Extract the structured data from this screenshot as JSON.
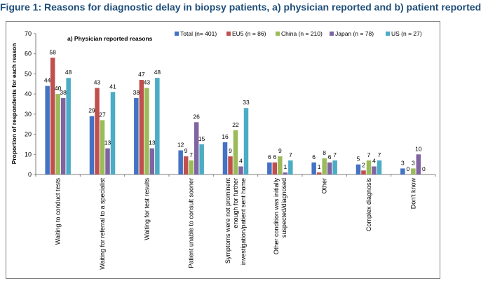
{
  "figure_title": "Figure 1: Reasons for diagnostic delay in biopsy patients, a) physician reported and b) patient reported",
  "chart_data": {
    "type": "bar",
    "subtitle": "a) Physician reported reasons",
    "ylabel": "Proportion of respondents for each reason",
    "xlabel": "",
    "ylim": [
      0,
      70
    ],
    "yticks": [
      0,
      10,
      20,
      30,
      40,
      50,
      60,
      70
    ],
    "grid": false,
    "legend_position": "top",
    "categories": [
      "Waiting to conduct tests",
      "Waiting for referral to a specialist",
      "Waiting for test results",
      "Patient unable to consult sooner",
      "Symptoms were not prominent enough for further investigation/patient sent home",
      "Other condition was initially suspected/diagnosed",
      "Other",
      "Complex diagnosis",
      "Don't know"
    ],
    "category_label_lines": [
      [
        "Waiting to conduct tests"
      ],
      [
        "Waiting for referral to a specialist"
      ],
      [
        "Waiting for test results"
      ],
      [
        "Patient unable to consult sooner"
      ],
      [
        "Symptoms were not prominent",
        "enough for further",
        "investigation/patient sent home"
      ],
      [
        "Other condition was initially",
        "suspected/diagnosed"
      ],
      [
        "Other"
      ],
      [
        "Complex diagnosis"
      ],
      [
        "Don't know"
      ]
    ],
    "series": [
      {
        "name": "Total (n= 401)",
        "color": "#4472c4",
        "values": [
          44,
          29,
          38,
          12,
          16,
          6,
          6,
          5,
          3
        ]
      },
      {
        "name": "EU5 (n = 86)",
        "color": "#c0504d",
        "values": [
          58,
          43,
          47,
          9,
          9,
          6,
          1,
          2,
          0
        ]
      },
      {
        "name": "China (n = 210)",
        "color": "#9bbb59",
        "values": [
          40,
          27,
          43,
          7,
          22,
          9,
          8,
          7,
          3
        ]
      },
      {
        "name": "Japan (n = 78)",
        "color": "#8064a2",
        "values": [
          38,
          13,
          13,
          26,
          4,
          1,
          6,
          4,
          10
        ]
      },
      {
        "name": "US (n = 27)",
        "color": "#4bacc6",
        "values": [
          48,
          41,
          48,
          15,
          33,
          7,
          7,
          7,
          0
        ]
      }
    ]
  }
}
